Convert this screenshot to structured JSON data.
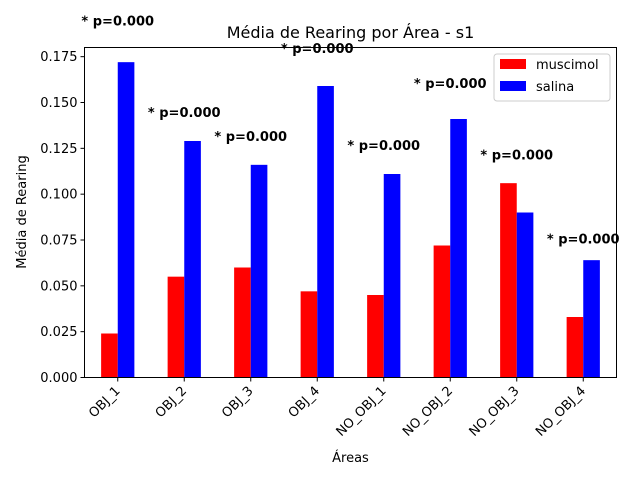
{
  "chart_data": {
    "type": "bar",
    "title": "Média de Rearing por Área - s1",
    "xlabel": "Áreas",
    "ylabel": "Média de Rearing",
    "ylim": [
      0,
      0.18
    ],
    "yticks": [
      "0.000",
      "0.025",
      "0.050",
      "0.075",
      "0.100",
      "0.125",
      "0.150",
      "0.175"
    ],
    "categories": [
      "OBJ_1",
      "OBJ_2",
      "OBJ_3",
      "OBJ_4",
      "NO_OBJ_1",
      "NO_OBJ_2",
      "NO_OBJ_3",
      "NO_OBJ_4"
    ],
    "series": [
      {
        "name": "muscimol",
        "color": "#ff0000",
        "values": [
          0.024,
          0.055,
          0.06,
          0.047,
          0.045,
          0.072,
          0.106,
          0.033
        ]
      },
      {
        "name": "salina",
        "color": "#0000ff",
        "values": [
          0.172,
          0.129,
          0.116,
          0.159,
          0.111,
          0.141,
          0.09,
          0.064
        ]
      }
    ],
    "annotations": [
      "* p=0.000",
      "* p=0.000",
      "* p=0.000",
      "* p=0.000",
      "* p=0.000",
      "* p=0.000",
      "* p=0.000",
      "* p=0.000"
    ],
    "annotation_values": [
      0.192,
      0.142,
      0.129,
      0.177,
      0.124,
      0.158,
      0.119,
      0.073
    ],
    "legend_position": "top-right",
    "grid": false
  }
}
